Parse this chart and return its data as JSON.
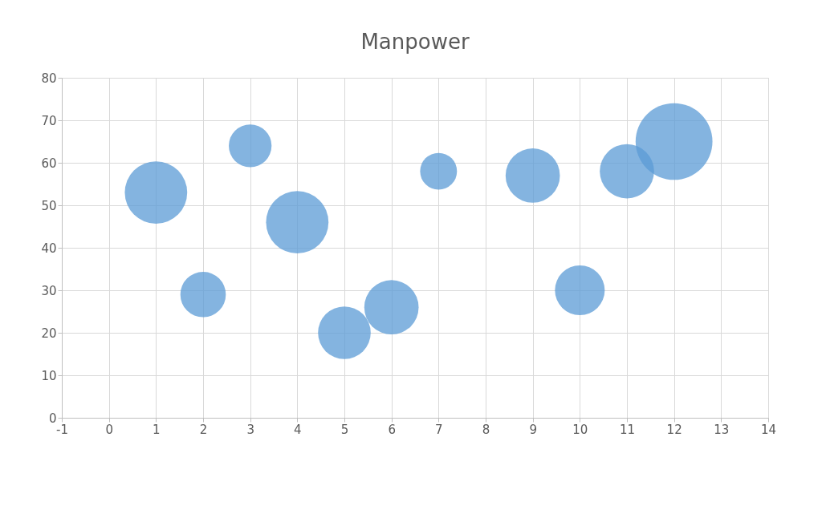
{
  "chart_data": {
    "type": "bubble",
    "title": "Manpower",
    "x": [
      1,
      2,
      3,
      4,
      5,
      6,
      7,
      9,
      10,
      11,
      12
    ],
    "series": [
      {
        "color": "#5b9bd5",
        "values": [
          53,
          29,
          64,
          46,
          20,
          26,
          58,
          57,
          30,
          58,
          65
        ],
        "sizes": [
          0.66,
          0.35,
          0.31,
          0.66,
          0.47,
          0.5,
          0.23,
          0.5,
          0.42,
          0.5,
          1
        ]
      }
    ],
    "xlim": [
      -1,
      14
    ],
    "xticks": [
      -1,
      0,
      1,
      2,
      3,
      4,
      5,
      6,
      7,
      8,
      9,
      10,
      11,
      12,
      13,
      14
    ],
    "ylim": [
      0,
      80
    ],
    "yticks": [
      0,
      10,
      20,
      30,
      40,
      50,
      60,
      70,
      80
    ],
    "grid": true
  }
}
